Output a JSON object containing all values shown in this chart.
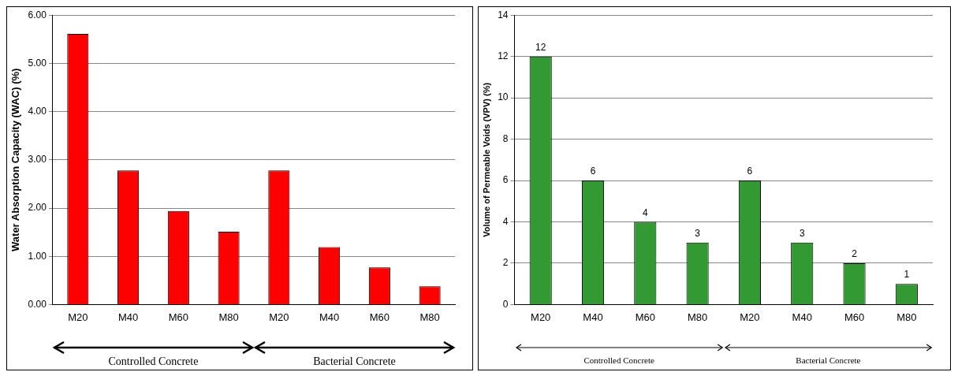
{
  "chart_data": [
    {
      "type": "bar",
      "ylabel": "Water Absorption Capacity (WAC) (%)",
      "categories": [
        "M20",
        "M40",
        "M60",
        "M80",
        "M20",
        "M40",
        "M60",
        "M80"
      ],
      "values": [
        5.61,
        2.78,
        1.94,
        1.51,
        2.78,
        1.19,
        0.77,
        0.38
      ],
      "color": "#ff0000",
      "ylim": [
        0,
        6
      ],
      "yticks": [
        {
          "value": 0,
          "label": "0.00"
        },
        {
          "value": 1,
          "label": "1.00"
        },
        {
          "value": 2,
          "label": "2.00"
        },
        {
          "value": 3,
          "label": "3.00"
        },
        {
          "value": 4,
          "label": "4.00"
        },
        {
          "value": 5,
          "label": "5.00"
        },
        {
          "value": 6,
          "label": "6.00"
        }
      ],
      "grid": "y",
      "annotations": [
        "Controlled Concrete",
        "Bacterial Concrete"
      ]
    },
    {
      "type": "bar",
      "ylabel": "Volume of Permeable Voids (VPV) (%)",
      "categories": [
        "M20",
        "M40",
        "M60",
        "M80",
        "M20",
        "M40",
        "M60",
        "M80"
      ],
      "values": [
        12,
        6,
        4,
        3,
        6,
        3,
        2,
        1
      ],
      "color": "#339933",
      "ylim": [
        0,
        14
      ],
      "yticks": [
        0,
        2,
        4,
        6,
        8,
        10,
        12,
        14
      ],
      "grid": "y",
      "data_labels": true,
      "annotations": [
        "Controlled Concrete",
        "Bacterial Concrete"
      ]
    }
  ]
}
